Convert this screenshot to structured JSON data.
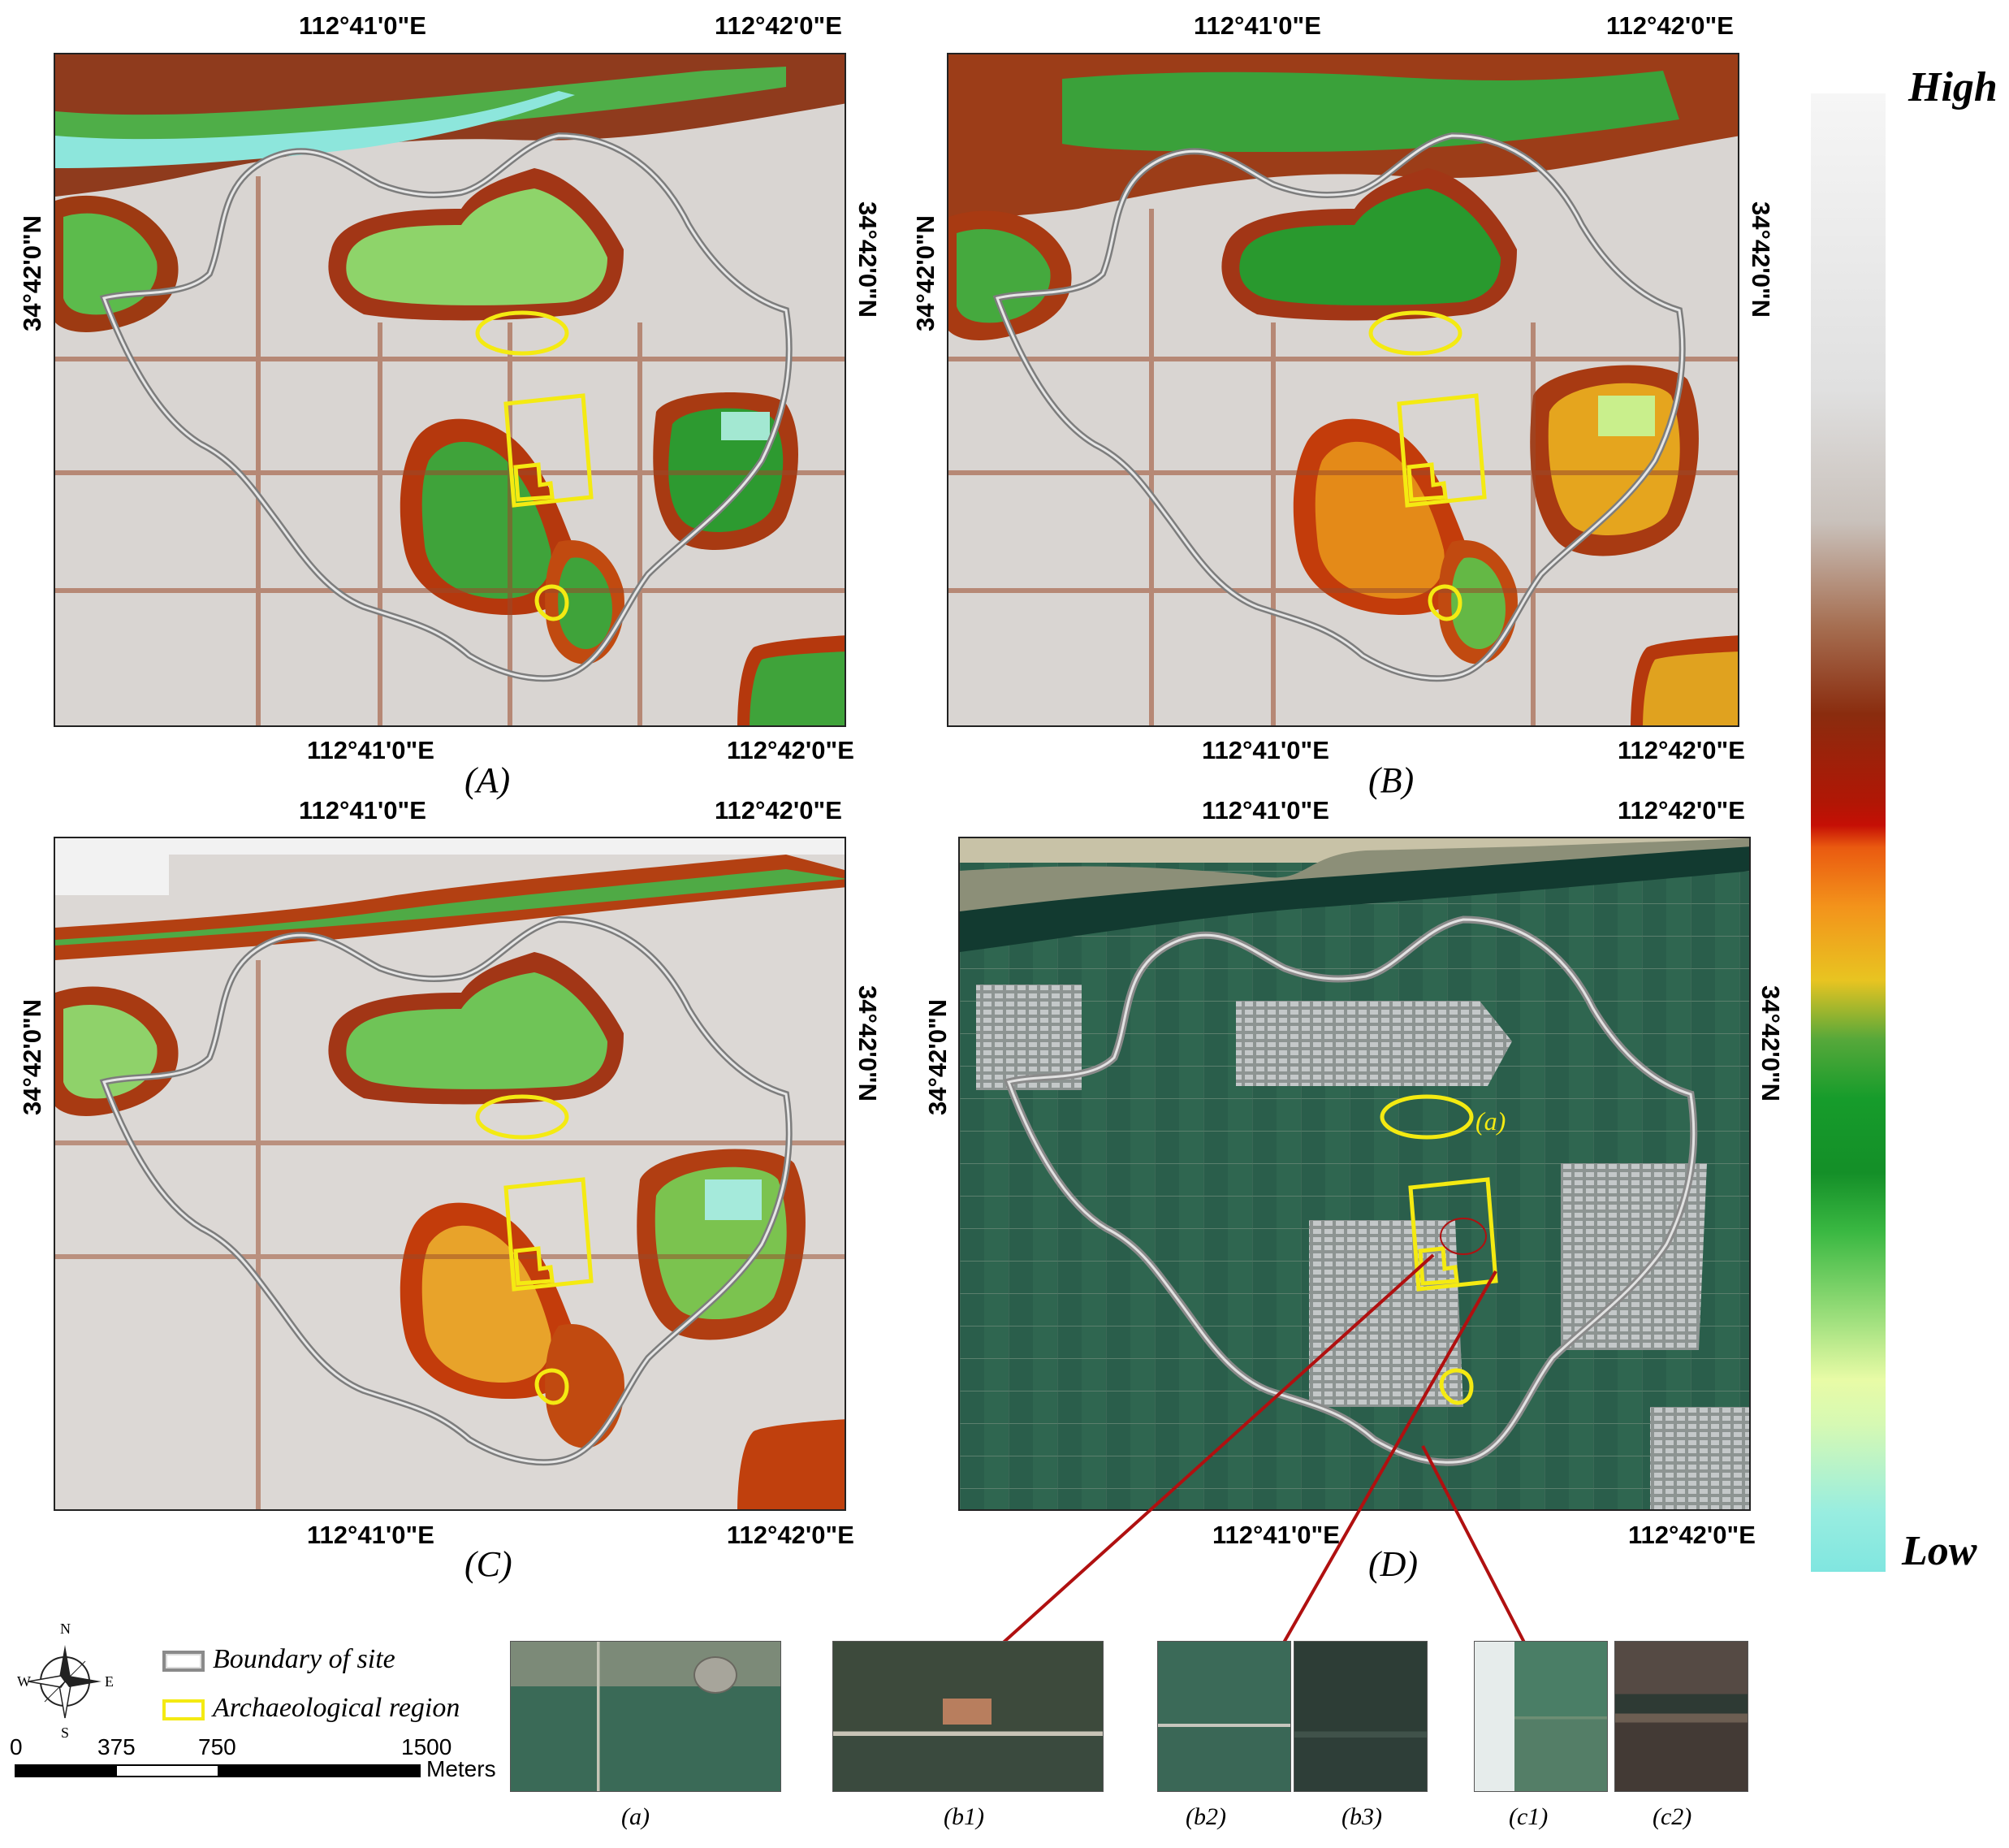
{
  "coords": {
    "lon1": "112°41'0\"E",
    "lon2": "112°42'0\"E",
    "lat": "34°42'0\"N"
  },
  "panels": {
    "A": "(A)",
    "B": "(B)",
    "C": "(C)",
    "D": "(D)"
  },
  "annotation_a": "(a)",
  "colorbar": {
    "high": "High",
    "low": "Low"
  },
  "legend": {
    "boundary": "Boundary of site",
    "archaeological": "Archaeological region",
    "compass_n": "N",
    "compass_s": "S",
    "compass_e": "E",
    "compass_w": "W"
  },
  "scalebar": {
    "ticks": [
      "0",
      "375",
      "750",
      "1500"
    ],
    "unit": "Meters"
  },
  "thumbnails": [
    "(a)",
    "(b1)",
    "(b2)",
    "(b3)",
    "(c1)",
    "(c2)"
  ],
  "colors": {
    "boundary": "#9a9a9a",
    "archaeological": "#f4ea12",
    "leader_line": "#b01010"
  }
}
